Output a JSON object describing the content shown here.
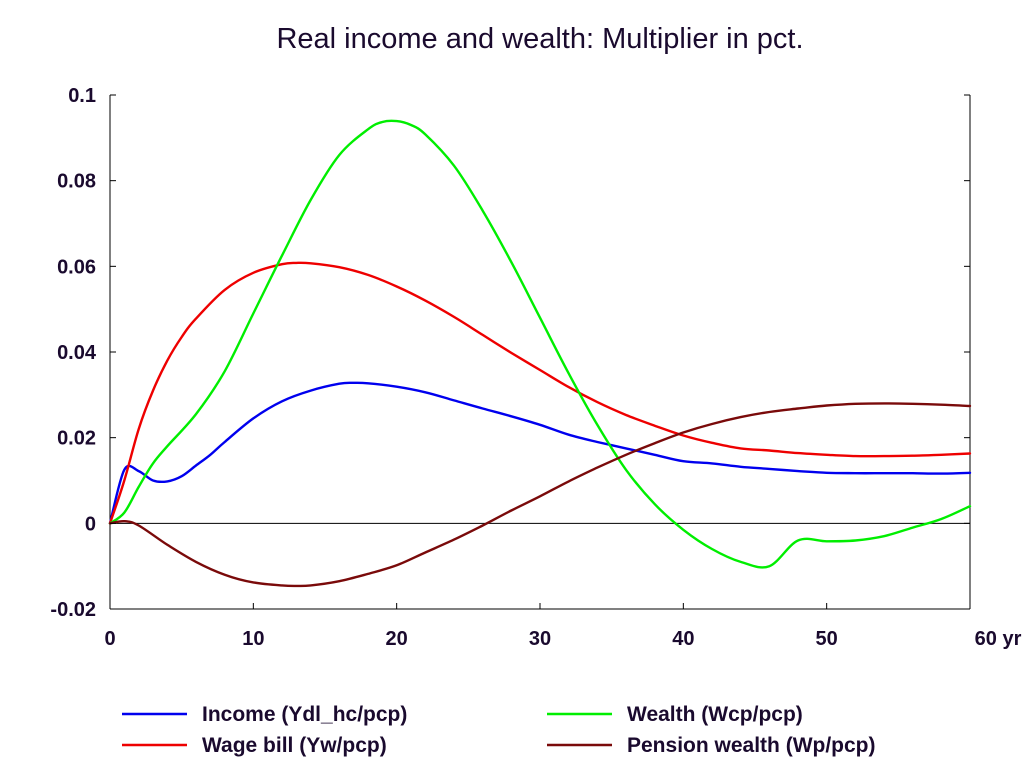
{
  "chart_data": {
    "type": "line",
    "title": "Real income and wealth: Multiplier in pct.",
    "xlabel": "",
    "ylabel": "",
    "x_unit": "yr",
    "xlim": [
      0,
      60
    ],
    "ylim": [
      -0.02,
      0.1
    ],
    "x_ticks": [
      0,
      10,
      20,
      30,
      40,
      50,
      60
    ],
    "x_tick_labels": [
      "0",
      "10",
      "20",
      "30",
      "40",
      "50",
      "60 yr"
    ],
    "y_ticks": [
      -0.02,
      0,
      0.02,
      0.04,
      0.06,
      0.08,
      0.1
    ],
    "y_tick_labels": [
      "-0.02",
      "0",
      "0.02",
      "0.04",
      "0.06",
      "0.08",
      "0.1"
    ],
    "grid": false,
    "legend_position": "bottom",
    "series": [
      {
        "name": "Income (Ydl_hc/pcp)",
        "color": "#0000ee",
        "x": [
          0,
          1,
          2,
          3,
          4,
          5,
          6,
          7,
          8,
          10,
          12,
          14,
          16,
          17,
          18,
          20,
          22,
          24,
          26,
          28,
          30,
          32,
          34,
          36,
          38,
          40,
          42,
          44,
          46,
          48,
          50,
          52,
          54,
          56,
          58,
          60
        ],
        "y": [
          0,
          0.0125,
          0.0122,
          0.01,
          0.0098,
          0.011,
          0.0135,
          0.016,
          0.019,
          0.0245,
          0.0285,
          0.031,
          0.0326,
          0.0328,
          0.0327,
          0.0319,
          0.0306,
          0.0287,
          0.0268,
          0.025,
          0.023,
          0.0207,
          0.019,
          0.0175,
          0.016,
          0.0145,
          0.014,
          0.0132,
          0.0127,
          0.0122,
          0.0118,
          0.0117,
          0.0117,
          0.0117,
          0.0116,
          0.0118
        ]
      },
      {
        "name": "Wage bill (Yw/pcp)",
        "color": "#ee0000",
        "x": [
          0,
          1,
          2,
          3,
          4,
          5,
          6,
          8,
          10,
          12,
          13,
          14,
          16,
          18,
          20,
          22,
          24,
          26,
          28,
          30,
          32,
          34,
          36,
          38,
          40,
          42,
          44,
          46,
          48,
          50,
          52,
          54,
          56,
          58,
          60
        ],
        "y": [
          0,
          0.01,
          0.022,
          0.031,
          0.038,
          0.0435,
          0.0478,
          0.0545,
          0.0585,
          0.0605,
          0.0608,
          0.0607,
          0.0598,
          0.058,
          0.0553,
          0.052,
          0.0482,
          0.044,
          0.0398,
          0.0358,
          0.0318,
          0.0283,
          0.0253,
          0.0228,
          0.0205,
          0.0188,
          0.0175,
          0.017,
          0.0164,
          0.016,
          0.0157,
          0.0157,
          0.0158,
          0.016,
          0.0163
        ]
      },
      {
        "name": "Wealth (Wcp/pcp)",
        "color": "#00ee00",
        "x": [
          0,
          1,
          2,
          3,
          4,
          6,
          8,
          10,
          12,
          14,
          16,
          18,
          19,
          20,
          21,
          22,
          24,
          26,
          28,
          30,
          32,
          34,
          36,
          38,
          40,
          42,
          44,
          46,
          48,
          50,
          52,
          54,
          56,
          58,
          60
        ],
        "y": [
          0,
          0.0025,
          0.0085,
          0.014,
          0.018,
          0.0255,
          0.0355,
          0.049,
          0.0625,
          0.0755,
          0.086,
          0.092,
          0.0937,
          0.0939,
          0.093,
          0.0908,
          0.0835,
          0.073,
          0.061,
          0.048,
          0.035,
          0.023,
          0.0125,
          0.0045,
          -0.0015,
          -0.006,
          -0.009,
          -0.01,
          -0.004,
          -0.0042,
          -0.004,
          -0.003,
          -0.001,
          0.001,
          0.004
        ]
      },
      {
        "name": "Pension wealth (Wp/pcp)",
        "color": "#7a0a0a",
        "x": [
          0,
          1,
          2,
          4,
          6,
          8,
          10,
          12,
          13,
          14,
          16,
          18,
          20,
          22,
          24,
          26,
          28,
          30,
          32,
          34,
          36,
          38,
          40,
          42,
          44,
          46,
          48,
          50,
          52,
          54,
          56,
          58,
          60
        ],
        "y": [
          0,
          0.0005,
          -0.0005,
          -0.005,
          -0.009,
          -0.012,
          -0.0138,
          -0.0145,
          -0.0146,
          -0.0145,
          -0.0135,
          -0.0118,
          -0.0098,
          -0.0068,
          -0.0038,
          -0.0005,
          0.003,
          0.0063,
          0.0098,
          0.013,
          0.016,
          0.0187,
          0.0212,
          0.0232,
          0.0248,
          0.026,
          0.0268,
          0.0275,
          0.0279,
          0.028,
          0.0279,
          0.0277,
          0.0274
        ]
      }
    ]
  }
}
